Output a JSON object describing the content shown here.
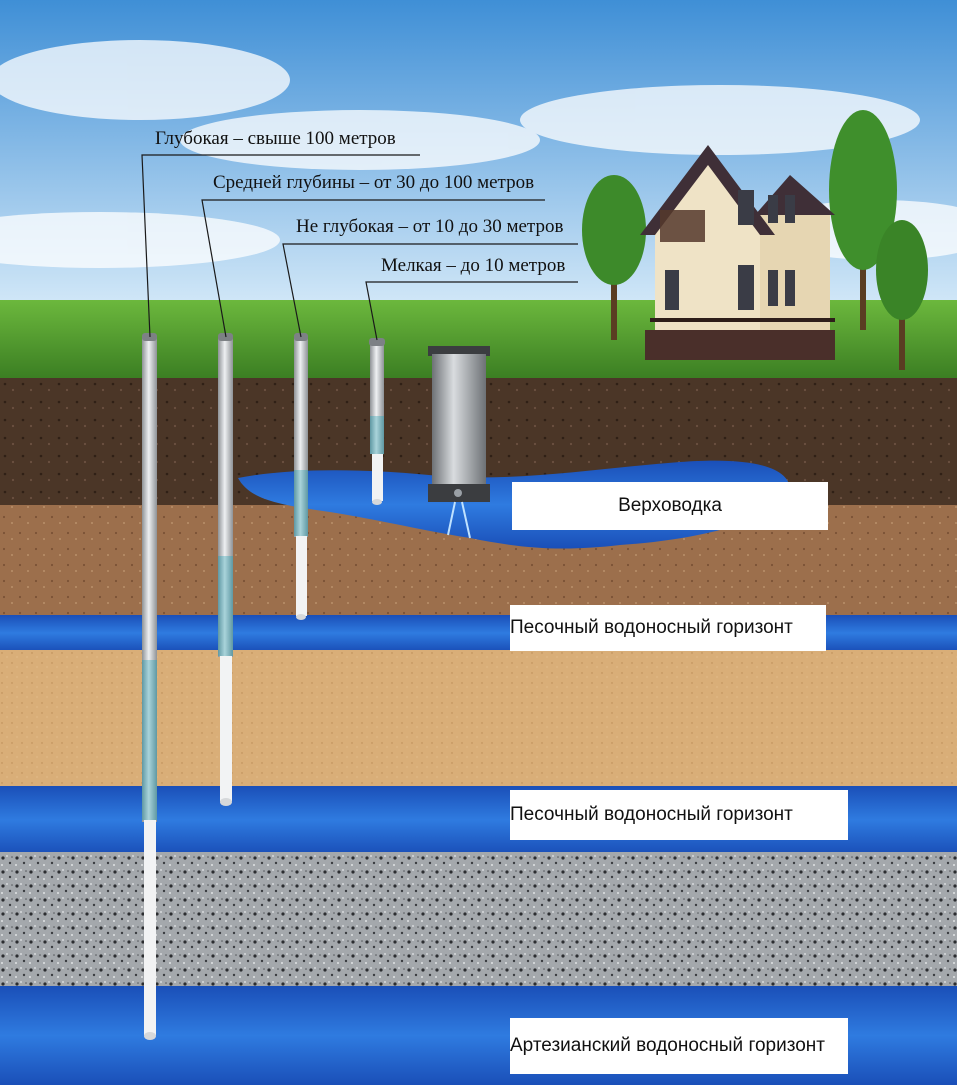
{
  "depth_labels": {
    "deep": "Глубокая – свыше 100 метров",
    "medium": "Средней глубины – от 30 до 100 метров",
    "shallow": "Не глубокая – от 10 до 30 метров",
    "small": "Мелкая – до 10 метров"
  },
  "layer_labels": {
    "perched": "Верховодка",
    "sand_aquifer_1": "Песочный водоносный горизонт",
    "sand_aquifer_2": "Песочный водоносный горизонт",
    "artesian": "Артезианский водоносный горизонт"
  },
  "colors": {
    "sky_top": "#3f8fd6",
    "sky_bottom": "#bfe0f5",
    "grass": "#4f9a2c",
    "topsoil": "#4a3526",
    "clay": "#9a6d4a",
    "sand": "#d8ae78",
    "aquifer_water": "#1f5fd0",
    "granite": "#9ea2a6",
    "pipe_water": "#7fb0b8",
    "pipe_metal": "#b8bcc0"
  },
  "icons": {
    "house": "house-icon",
    "tree": "tree-icon",
    "well": "well-ring-icon"
  }
}
